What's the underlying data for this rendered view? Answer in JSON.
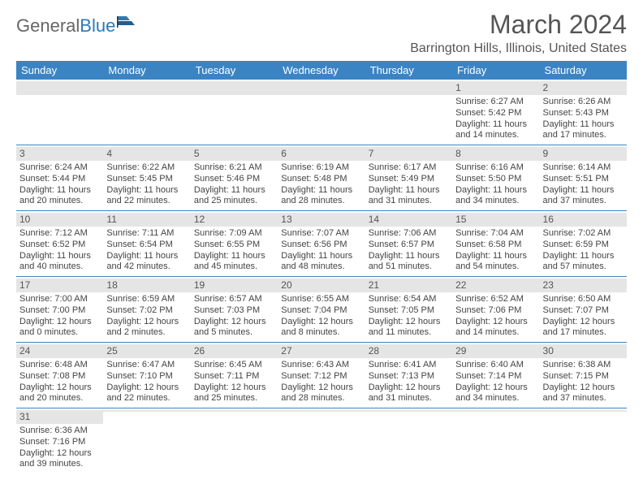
{
  "logo": {
    "text1": "General",
    "text2": "Blue"
  },
  "title": "March 2024",
  "location": "Barrington Hills, Illinois, United States",
  "colors": {
    "header_bg": "#3b84c4",
    "daynum_bg": "#e5e5e5",
    "row_border": "#3b84c4"
  },
  "day_headers": [
    "Sunday",
    "Monday",
    "Tuesday",
    "Wednesday",
    "Thursday",
    "Friday",
    "Saturday"
  ],
  "weeks": [
    [
      null,
      null,
      null,
      null,
      null,
      {
        "n": "1",
        "sr": "Sunrise: 6:27 AM",
        "ss": "Sunset: 5:42 PM",
        "dl": "Daylight: 11 hours and 14 minutes."
      },
      {
        "n": "2",
        "sr": "Sunrise: 6:26 AM",
        "ss": "Sunset: 5:43 PM",
        "dl": "Daylight: 11 hours and 17 minutes."
      }
    ],
    [
      {
        "n": "3",
        "sr": "Sunrise: 6:24 AM",
        "ss": "Sunset: 5:44 PM",
        "dl": "Daylight: 11 hours and 20 minutes."
      },
      {
        "n": "4",
        "sr": "Sunrise: 6:22 AM",
        "ss": "Sunset: 5:45 PM",
        "dl": "Daylight: 11 hours and 22 minutes."
      },
      {
        "n": "5",
        "sr": "Sunrise: 6:21 AM",
        "ss": "Sunset: 5:46 PM",
        "dl": "Daylight: 11 hours and 25 minutes."
      },
      {
        "n": "6",
        "sr": "Sunrise: 6:19 AM",
        "ss": "Sunset: 5:48 PM",
        "dl": "Daylight: 11 hours and 28 minutes."
      },
      {
        "n": "7",
        "sr": "Sunrise: 6:17 AM",
        "ss": "Sunset: 5:49 PM",
        "dl": "Daylight: 11 hours and 31 minutes."
      },
      {
        "n": "8",
        "sr": "Sunrise: 6:16 AM",
        "ss": "Sunset: 5:50 PM",
        "dl": "Daylight: 11 hours and 34 minutes."
      },
      {
        "n": "9",
        "sr": "Sunrise: 6:14 AM",
        "ss": "Sunset: 5:51 PM",
        "dl": "Daylight: 11 hours and 37 minutes."
      }
    ],
    [
      {
        "n": "10",
        "sr": "Sunrise: 7:12 AM",
        "ss": "Sunset: 6:52 PM",
        "dl": "Daylight: 11 hours and 40 minutes."
      },
      {
        "n": "11",
        "sr": "Sunrise: 7:11 AM",
        "ss": "Sunset: 6:54 PM",
        "dl": "Daylight: 11 hours and 42 minutes."
      },
      {
        "n": "12",
        "sr": "Sunrise: 7:09 AM",
        "ss": "Sunset: 6:55 PM",
        "dl": "Daylight: 11 hours and 45 minutes."
      },
      {
        "n": "13",
        "sr": "Sunrise: 7:07 AM",
        "ss": "Sunset: 6:56 PM",
        "dl": "Daylight: 11 hours and 48 minutes."
      },
      {
        "n": "14",
        "sr": "Sunrise: 7:06 AM",
        "ss": "Sunset: 6:57 PM",
        "dl": "Daylight: 11 hours and 51 minutes."
      },
      {
        "n": "15",
        "sr": "Sunrise: 7:04 AM",
        "ss": "Sunset: 6:58 PM",
        "dl": "Daylight: 11 hours and 54 minutes."
      },
      {
        "n": "16",
        "sr": "Sunrise: 7:02 AM",
        "ss": "Sunset: 6:59 PM",
        "dl": "Daylight: 11 hours and 57 minutes."
      }
    ],
    [
      {
        "n": "17",
        "sr": "Sunrise: 7:00 AM",
        "ss": "Sunset: 7:00 PM",
        "dl": "Daylight: 12 hours and 0 minutes."
      },
      {
        "n": "18",
        "sr": "Sunrise: 6:59 AM",
        "ss": "Sunset: 7:02 PM",
        "dl": "Daylight: 12 hours and 2 minutes."
      },
      {
        "n": "19",
        "sr": "Sunrise: 6:57 AM",
        "ss": "Sunset: 7:03 PM",
        "dl": "Daylight: 12 hours and 5 minutes."
      },
      {
        "n": "20",
        "sr": "Sunrise: 6:55 AM",
        "ss": "Sunset: 7:04 PM",
        "dl": "Daylight: 12 hours and 8 minutes."
      },
      {
        "n": "21",
        "sr": "Sunrise: 6:54 AM",
        "ss": "Sunset: 7:05 PM",
        "dl": "Daylight: 12 hours and 11 minutes."
      },
      {
        "n": "22",
        "sr": "Sunrise: 6:52 AM",
        "ss": "Sunset: 7:06 PM",
        "dl": "Daylight: 12 hours and 14 minutes."
      },
      {
        "n": "23",
        "sr": "Sunrise: 6:50 AM",
        "ss": "Sunset: 7:07 PM",
        "dl": "Daylight: 12 hours and 17 minutes."
      }
    ],
    [
      {
        "n": "24",
        "sr": "Sunrise: 6:48 AM",
        "ss": "Sunset: 7:08 PM",
        "dl": "Daylight: 12 hours and 20 minutes."
      },
      {
        "n": "25",
        "sr": "Sunrise: 6:47 AM",
        "ss": "Sunset: 7:10 PM",
        "dl": "Daylight: 12 hours and 22 minutes."
      },
      {
        "n": "26",
        "sr": "Sunrise: 6:45 AM",
        "ss": "Sunset: 7:11 PM",
        "dl": "Daylight: 12 hours and 25 minutes."
      },
      {
        "n": "27",
        "sr": "Sunrise: 6:43 AM",
        "ss": "Sunset: 7:12 PM",
        "dl": "Daylight: 12 hours and 28 minutes."
      },
      {
        "n": "28",
        "sr": "Sunrise: 6:41 AM",
        "ss": "Sunset: 7:13 PM",
        "dl": "Daylight: 12 hours and 31 minutes."
      },
      {
        "n": "29",
        "sr": "Sunrise: 6:40 AM",
        "ss": "Sunset: 7:14 PM",
        "dl": "Daylight: 12 hours and 34 minutes."
      },
      {
        "n": "30",
        "sr": "Sunrise: 6:38 AM",
        "ss": "Sunset: 7:15 PM",
        "dl": "Daylight: 12 hours and 37 minutes."
      }
    ],
    [
      {
        "n": "31",
        "sr": "Sunrise: 6:36 AM",
        "ss": "Sunset: 7:16 PM",
        "dl": "Daylight: 12 hours and 39 minutes."
      },
      null,
      null,
      null,
      null,
      null,
      null
    ]
  ]
}
